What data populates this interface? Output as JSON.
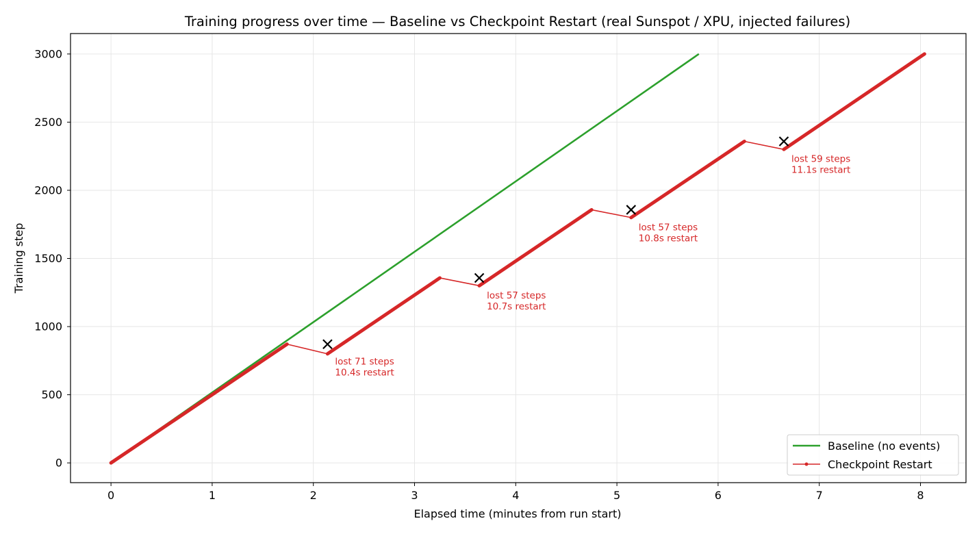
{
  "chart_data": {
    "type": "line",
    "title": "Training progress over time — Baseline vs Checkpoint Restart (real Sunspot / XPU, injected failures)",
    "xlabel": "Elapsed time (minutes from run start)",
    "ylabel": "Training step",
    "xlim": [
      -0.4,
      8.45
    ],
    "ylim": [
      -145,
      3150
    ],
    "xticks": [
      0,
      1,
      2,
      3,
      4,
      5,
      6,
      7,
      8
    ],
    "yticks": [
      0,
      500,
      1000,
      1500,
      2000,
      2500,
      3000
    ],
    "grid": true,
    "legend_position": "bottom-right",
    "colors": {
      "baseline": "#2ca02c",
      "restart": "#d62728",
      "marker": "#000000"
    },
    "series": [
      {
        "name": "Baseline (no events)",
        "x": [
          0,
          5.81
        ],
        "y": [
          0,
          3000
        ]
      },
      {
        "name": "Checkpoint Restart",
        "segments": [
          {
            "x": [
              0,
              1.74
            ],
            "y": [
              0,
              871
            ]
          },
          {
            "x": [
              1.74,
              2.14
            ],
            "y": [
              871,
              800
            ]
          },
          {
            "x": [
              2.14,
              3.25
            ],
            "y": [
              800,
              1357
            ]
          },
          {
            "x": [
              3.25,
              3.64
            ],
            "y": [
              1357,
              1300
            ]
          },
          {
            "x": [
              3.64,
              4.75
            ],
            "y": [
              1300,
              1857
            ]
          },
          {
            "x": [
              4.75,
              5.14
            ],
            "y": [
              1857,
              1800
            ]
          },
          {
            "x": [
              5.14,
              6.26
            ],
            "y": [
              1800,
              2359
            ]
          },
          {
            "x": [
              6.26,
              6.65
            ],
            "y": [
              2359,
              2300
            ]
          },
          {
            "x": [
              6.65,
              8.04
            ],
            "y": [
              2300,
              3000
            ]
          }
        ]
      }
    ],
    "failures": [
      {
        "x": 2.14,
        "y": 871,
        "label_line1": "lost 71 steps",
        "label_line2": "10.4s restart"
      },
      {
        "x": 3.64,
        "y": 1357,
        "label_line1": "lost 57 steps",
        "label_line2": "10.7s restart"
      },
      {
        "x": 5.14,
        "y": 1857,
        "label_line1": "lost 57 steps",
        "label_line2": "10.8s restart"
      },
      {
        "x": 6.65,
        "y": 2359,
        "label_line1": "lost 59 steps",
        "label_line2": "11.1s restart"
      }
    ]
  }
}
